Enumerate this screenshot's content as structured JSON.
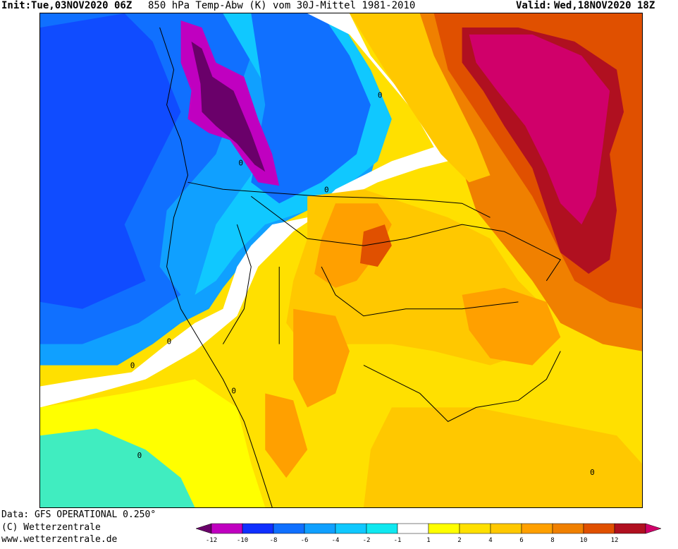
{
  "header": {
    "init_label": "Init:",
    "init_value": "Tue,03NOV2020 06Z",
    "title": "850 hPa Temp-Abw (K) vom 30J-Mittel 1981-2010",
    "valid_label": "Valid:",
    "valid_value": "Wed,18NOV2020 18Z"
  },
  "footer": {
    "data_source": "Data: GFS OPERATIONAL 0.250°",
    "copyright": "(C) Wetterzentrale",
    "website": "www.wetterzentrale.de"
  },
  "map_labels": {
    "zero": "0"
  },
  "legend": {
    "colors": [
      "#6a006a",
      "#c000c0",
      "#1030ff",
      "#1070ff",
      "#10a0ff",
      "#10c8ff",
      "#10e8f0",
      "#ffffff",
      "#ffff00",
      "#ffe000",
      "#ffc800",
      "#ffa000",
      "#f08000",
      "#e05000",
      "#b01020",
      "#d0006a"
    ],
    "tick_labels": [
      "-12",
      "-10",
      "-8",
      "-6",
      "-4",
      "-2",
      "-1",
      "1",
      "2",
      "4",
      "6",
      "8",
      "10",
      "12"
    ]
  }
}
